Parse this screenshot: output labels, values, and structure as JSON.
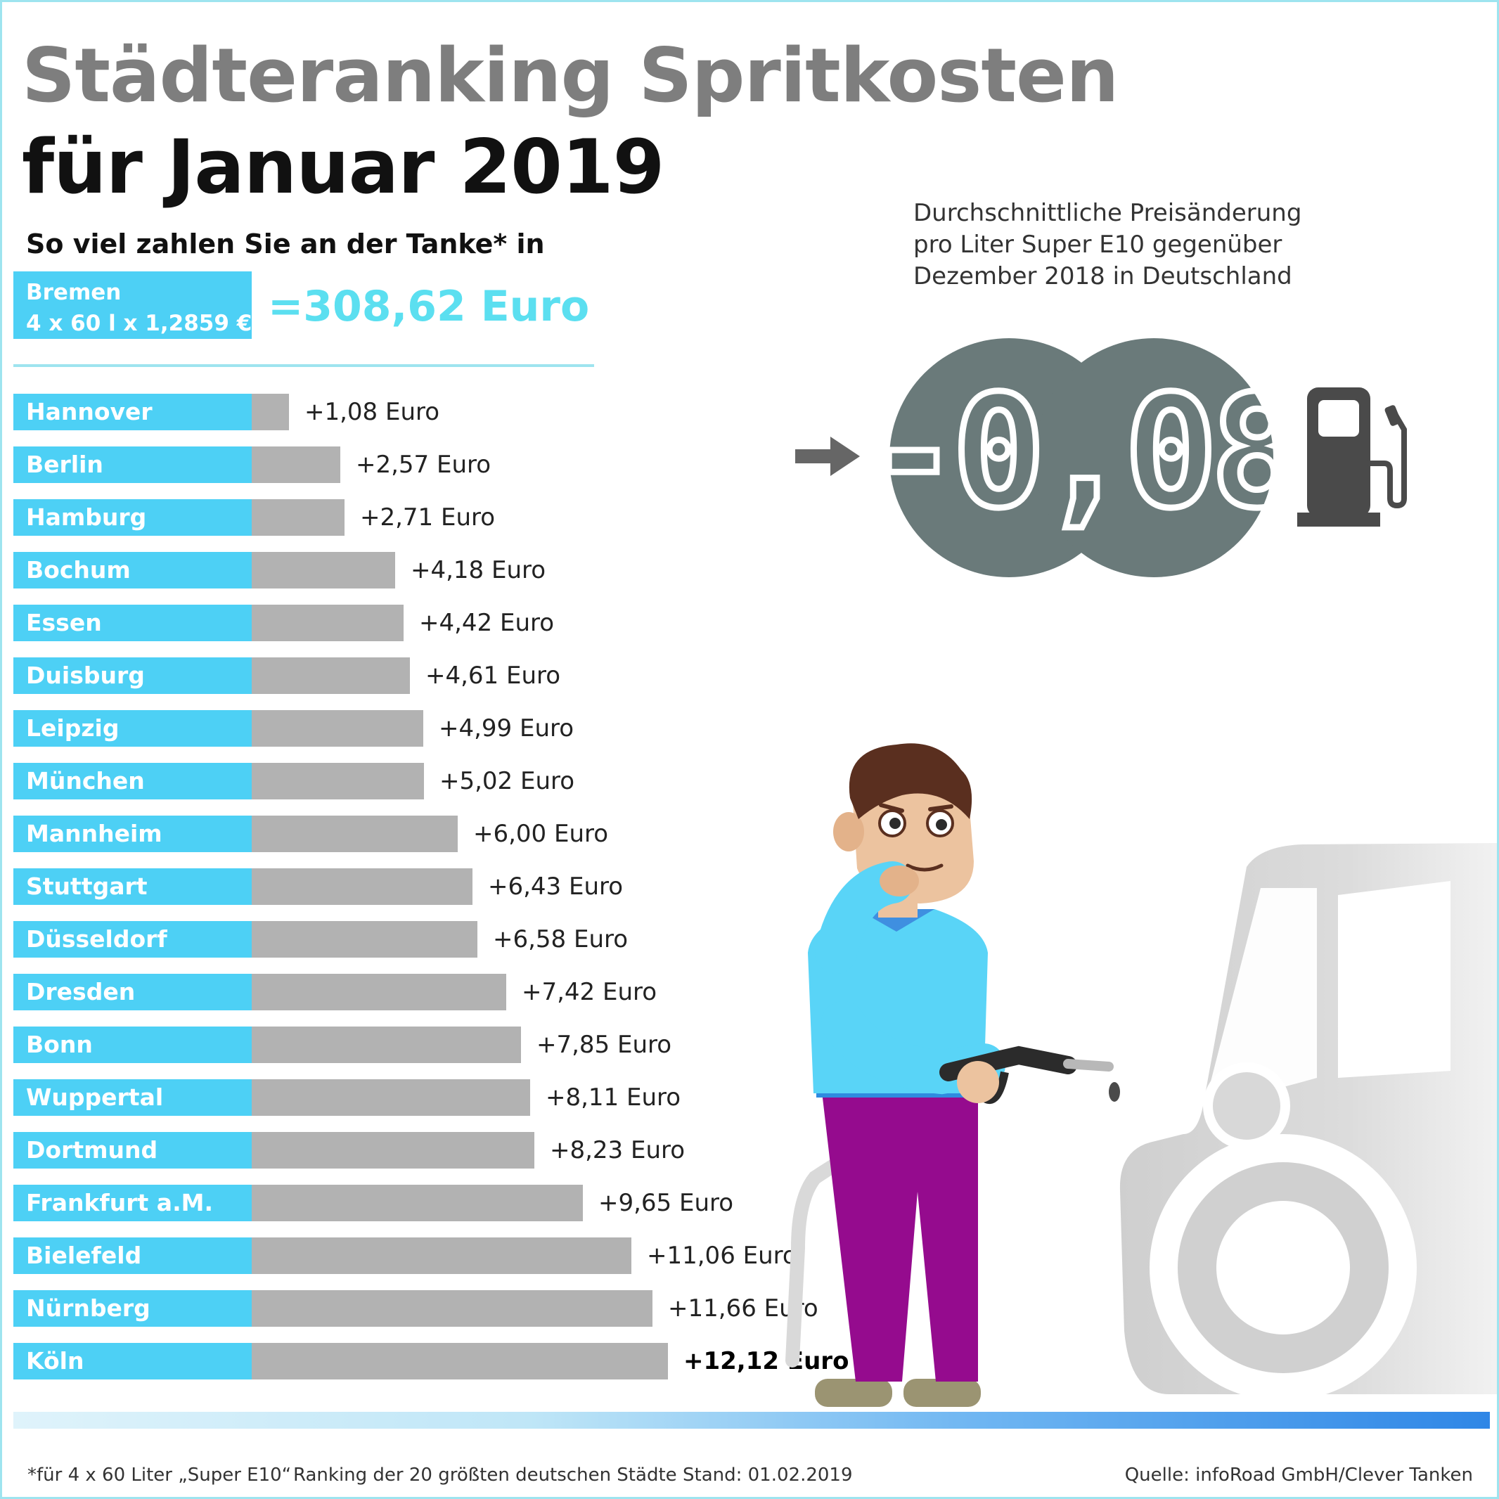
{
  "title_line1": "Städteranking Spritkosten",
  "title_line2": "für Januar 2019",
  "subtitle": "So viel zahlen Sie an der Tanke* in",
  "reference": {
    "city": "Bremen",
    "formula": "4 x 60 l x 1,2859 €",
    "total": "=308,62 Euro"
  },
  "chart_data": {
    "type": "bar",
    "orientation": "horizontal",
    "unit": "Euro",
    "categories": [
      "Hannover",
      "Berlin",
      "Hamburg",
      "Bochum",
      "Essen",
      "Duisburg",
      "Leipzig",
      "München",
      "Mannheim",
      "Stuttgart",
      "Düsseldorf",
      "Dresden",
      "Bonn",
      "Wuppertal",
      "Dortmund",
      "Frankfurt a.M.",
      "Bielefeld",
      "Nürnberg",
      "Köln"
    ],
    "values": [
      1.08,
      2.57,
      2.71,
      4.18,
      4.42,
      4.61,
      4.99,
      5.02,
      6.0,
      6.43,
      6.58,
      7.42,
      7.85,
      8.11,
      8.23,
      9.65,
      11.06,
      11.66,
      12.12
    ],
    "value_labels": [
      "+1,08 Euro",
      "+2,57 Euro",
      "+2,71 Euro",
      "+4,18 Euro",
      "+4,42 Euro",
      "+4,61 Euro",
      "+4,99 Euro",
      "+5,02 Euro",
      "+6,00 Euro",
      "+6,43 Euro",
      "+6,58 Euro",
      "+7,42 Euro",
      "+7,85 Euro",
      "+8,11 Euro",
      "+8,23 Euro",
      "+9,65 Euro",
      "+11,06 Euro",
      "+11,66 Euro",
      "+12,12 Euro"
    ],
    "highlight_category": "Köln",
    "xlim": [
      0,
      12.12
    ],
    "grid": false,
    "legend": "none"
  },
  "info": {
    "lines": [
      "Durchschnittliche Preisänderung",
      "pro Liter Super E10 gegenüber",
      "Dezember 2018 in Deutschland"
    ],
    "value": "-0,08"
  },
  "footer": {
    "note": "*für 4 x 60 Liter „Super E10“",
    "ranking": "Ranking der 20 größten deutschen Städte",
    "stand": "Stand: 01.02.2019",
    "source": "Quelle: infoRoad GmbH/Clever Tanken"
  },
  "colors": {
    "label_bg": "#4dd0f5",
    "bar": "#b2b2b2",
    "accent_total": "#5bdff0",
    "display_bg": "#6a7a7a",
    "pump": "#4a4a4a",
    "car": "#d6d6d6",
    "shirt": "#59d4f7",
    "pants": "#950b8e"
  },
  "icons": [
    "arrow-right-icon",
    "fuel-pump-icon",
    "person-illustration",
    "car-illustration",
    "fuel-nozzle-icon"
  ]
}
